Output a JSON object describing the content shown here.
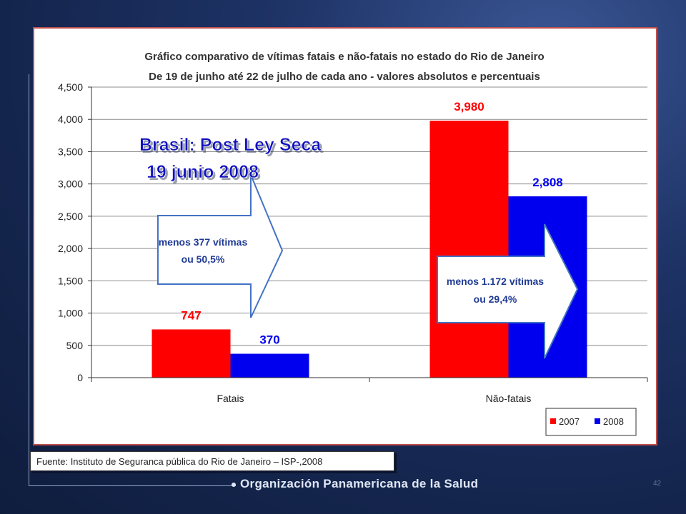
{
  "chart_data": {
    "type": "bar",
    "title": "Gráfico comparativo de vítimas fatais e não-fatais no estado do Rio de Janeiro",
    "subtitle": "De 19 de junho até 22 de julho de cada ano - valores absolutos e percentuais",
    "categories": [
      "Fatais",
      "Não-fatais"
    ],
    "series": [
      {
        "name": "2007",
        "values": [
          747,
          3980
        ],
        "labels": [
          "747",
          "3,980"
        ],
        "color": "#ff0000"
      },
      {
        "name": "2008",
        "values": [
          370,
          2808
        ],
        "labels": [
          "370",
          "2,808"
        ],
        "color": "#0000ee"
      }
    ],
    "yticks": [
      0,
      500,
      1000,
      1500,
      2000,
      2500,
      3000,
      3500,
      4000,
      4500
    ],
    "ytick_labels": [
      "0",
      "500",
      "1,000",
      "1,500",
      "2,000",
      "2,500",
      "3,000",
      "3,500",
      "4,000",
      "4,500"
    ],
    "ylim": [
      0,
      4500
    ],
    "grid": true,
    "legend_position": "bottom-right"
  },
  "overlay": {
    "headline_line1": "Brasil: Post Ley Seca",
    "headline_line2": "19 junio 2008",
    "arrow1_line1": "menos 377 vítimas",
    "arrow1_line2": "ou 50,5%",
    "arrow2_line1": "menos 1.172 vítimas",
    "arrow2_line2": "ou 29,4%",
    "headline_color": "#1010c0"
  },
  "footer": {
    "source": "Fuente: Instituto de Seguranca pública do Rio de Janeiro – ISP-,2008",
    "organization": "Organización Panamericana de la Salud",
    "page_number": "42"
  }
}
